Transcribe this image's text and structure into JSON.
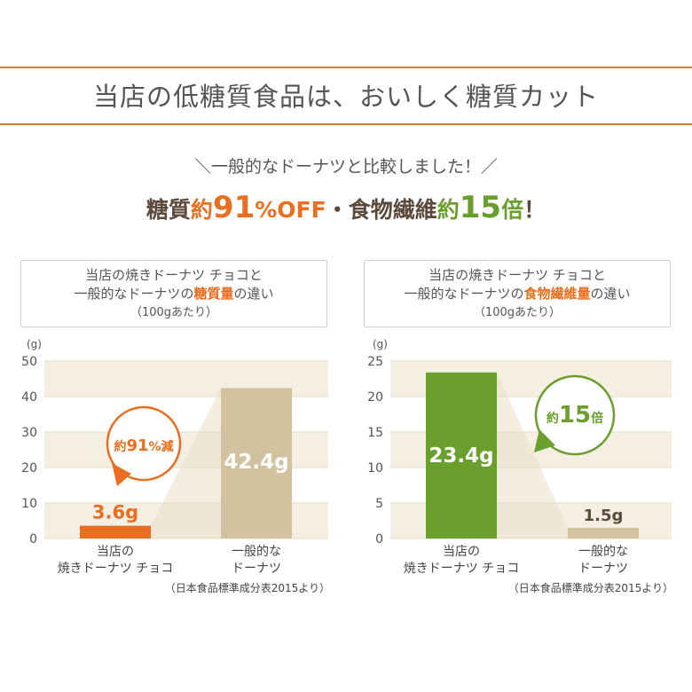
{
  "header": {
    "title": "当店の低糖質食品は、おいしく糖質カット",
    "intro": "＼一般的なドーナツと比較しました！／",
    "headline": {
      "p1": "糖質",
      "p2": "約",
      "p3": "91",
      "p4": "%OFF",
      "p5": "・食物繊維",
      "p6": "約",
      "p7": "15",
      "p8": "倍",
      "p9": "！"
    }
  },
  "colors": {
    "orange": "#e96e1f",
    "green": "#6a9e2d",
    "beige": "#d2c29f",
    "stripe": "#f5efe3",
    "tan_line": "#e07a3a"
  },
  "chart_data": [
    {
      "type": "bar",
      "caption": {
        "line1": "当店の焼きドーナツ チョコと",
        "line2_a": "一般的なドーナツの",
        "line2_hl": "糖質量",
        "line2_b": "の違い",
        "line3": "（100gあたり）"
      },
      "unit": "(g)",
      "ylim": [
        0,
        50
      ],
      "yticks": [
        0,
        10,
        20,
        30,
        40,
        50
      ],
      "categories": [
        {
          "line1": "当店の",
          "line2": "焼きドーナツ チョコ"
        },
        {
          "line1": "一般的な",
          "line2": "ドーナツ"
        }
      ],
      "values": [
        3.6,
        42.4
      ],
      "value_labels": [
        "3.6g",
        "42.4g"
      ],
      "callout": {
        "prefix": "約",
        "number": "91",
        "suffix": "%減"
      },
      "source": "（日本食品標準成分表2015より）"
    },
    {
      "type": "bar",
      "caption": {
        "line1": "当店の焼きドーナツ チョコと",
        "line2_a": "一般的なドーナツの",
        "line2_hl": "食物繊維量",
        "line2_b": "の違い",
        "line3": "（100gあたり）"
      },
      "unit": "(g)",
      "ylim": [
        0,
        25
      ],
      "yticks": [
        0,
        5,
        10,
        15,
        20,
        25
      ],
      "categories": [
        {
          "line1": "当店の",
          "line2": "焼きドーナツ チョコ"
        },
        {
          "line1": "一般的な",
          "line2": "ドーナツ"
        }
      ],
      "values": [
        23.4,
        1.5
      ],
      "value_labels": [
        "23.4g",
        "1.5g"
      ],
      "callout": {
        "prefix": "約",
        "number": "15",
        "suffix": "倍"
      },
      "source": "（日本食品標準成分表2015より）"
    }
  ]
}
